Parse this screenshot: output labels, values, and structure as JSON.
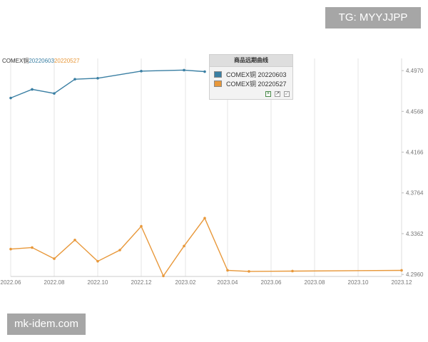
{
  "watermarks": {
    "top_right": "TG: MYYJJPP",
    "bottom_left": "mk-idem.com"
  },
  "series_title": {
    "prefix": "COMEX铜",
    "s1": "20220603",
    "s2": "20220527"
  },
  "legend": {
    "title": "商品远期曲线",
    "items": [
      {
        "label": "COMEX铜 20220603",
        "color": "#3a7fa3"
      },
      {
        "label": "COMEX铜 20220527",
        "color": "#e8983a"
      }
    ],
    "tool_icons": [
      "export-icon",
      "resize-icon",
      "close-icon"
    ]
  },
  "chart_data": {
    "type": "line",
    "title": "",
    "xlabel": "",
    "ylabel": "",
    "x_ticks": [
      "2022.06",
      "2022.08",
      "2022.10",
      "2022.12",
      "2023.02",
      "2023.04",
      "2023.06",
      "2023.08",
      "2023.10",
      "2023.12"
    ],
    "y_ticks": [
      "4.2960",
      "4.3362",
      "4.3764",
      "4.4166",
      "4.4568",
      "4.4970"
    ],
    "xlim": [
      "2022-06-01",
      "2023-12-01"
    ],
    "ylim": [
      4.294,
      4.502
    ],
    "y_axis_side": "right",
    "grid": {
      "vertical": true,
      "horizontal": false
    },
    "series": [
      {
        "name": "COMEX铜 20220603",
        "color": "#3a7fa3",
        "points": [
          [
            "2022-06-01",
            4.47
          ],
          [
            "2022-07-01",
            4.4785
          ],
          [
            "2022-08-01",
            4.4745
          ],
          [
            "2022-08-30",
            4.4885
          ],
          [
            "2022-10-01",
            4.4895
          ],
          [
            "2022-12-01",
            4.4965
          ],
          [
            "2023-01-30",
            4.4975
          ],
          [
            "2023-02-28",
            4.496
          ]
        ]
      },
      {
        "name": "COMEX铜 20220527",
        "color": "#e8983a",
        "points": [
          [
            "2022-06-01",
            4.321
          ],
          [
            "2022-07-01",
            4.3225
          ],
          [
            "2022-08-01",
            4.3115
          ],
          [
            "2022-08-30",
            4.33
          ],
          [
            "2022-10-01",
            4.309
          ],
          [
            "2022-11-01",
            4.32
          ],
          [
            "2022-12-01",
            4.3435
          ],
          [
            "2023-01-01",
            4.2945
          ],
          [
            "2023-01-30",
            4.324
          ],
          [
            "2023-02-28",
            4.3515
          ],
          [
            "2023-04-01",
            4.3
          ],
          [
            "2023-05-01",
            4.299
          ],
          [
            "2023-07-01",
            4.2993
          ],
          [
            "2023-12-01",
            4.3
          ]
        ]
      }
    ]
  }
}
